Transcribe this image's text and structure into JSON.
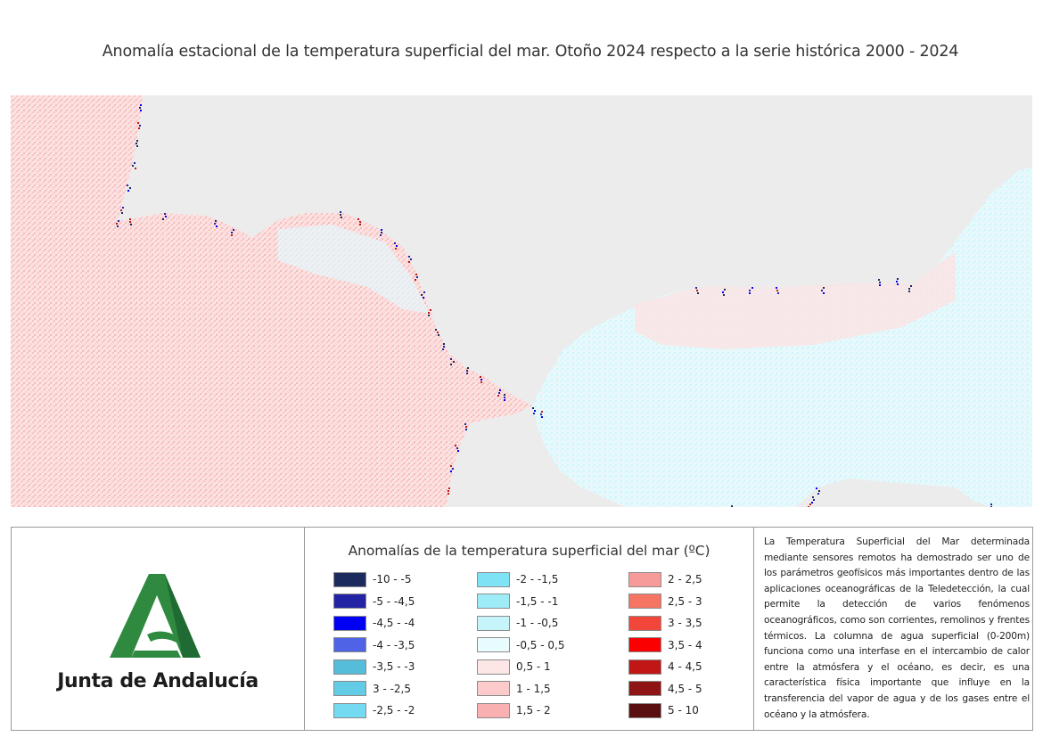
{
  "title": "Anomalía estacional de la temperatura superficial del mar. Otoño 2024 respecto a la serie histórica 2000 - 2024",
  "map": {
    "land_color": "#ececec",
    "dominant_west": "0,5 - 1",
    "dominant_east": "-0,5 - 0,5"
  },
  "logo": {
    "text": "Junta de Andalucía",
    "primary_color": "#2f8a3f",
    "dark_color": "#1f6b33"
  },
  "legend": {
    "title": "Anomalías de la temperatura superficial del mar (ºC)",
    "columns": [
      [
        {
          "label": "-10 - -5",
          "color": "#1b2b5e"
        },
        {
          "label": "-5 - -4,5",
          "color": "#2323a6"
        },
        {
          "label": "-4,5 - -4",
          "color": "#0000f5"
        },
        {
          "label": "-4 - -3,5",
          "color": "#4f63e6"
        },
        {
          "label": "-3,5 - -3",
          "color": "#55bcd9"
        },
        {
          "label": "3 - -2,5",
          "color": "#62cbe6"
        },
        {
          "label": "-2,5 - -2",
          "color": "#73daf2"
        }
      ],
      [
        {
          "label": "-2 - -1,5",
          "color": "#7fe2f5"
        },
        {
          "label": "-1,5 - -1",
          "color": "#9eecf8"
        },
        {
          "label": "-1 - -0,5",
          "color": "#c5f5fb"
        },
        {
          "label": "-0,5 - 0,5",
          "color": "#e8fbfd"
        },
        {
          "label": "0,5 - 1",
          "color": "#fde6e6"
        },
        {
          "label": "1 - 1,5",
          "color": "#fccaca"
        },
        {
          "label": "1,5 - 2",
          "color": "#f9b0b0"
        }
      ],
      [
        {
          "label": "2 - 2,5",
          "color": "#f79a9a"
        },
        {
          "label": "2,5 - 3",
          "color": "#f57462"
        },
        {
          "label": "3 - 3,5",
          "color": "#f2463a"
        },
        {
          "label": "3,5 - 4",
          "color": "#fb0000"
        },
        {
          "label": "4 - 4,5",
          "color": "#c01616"
        },
        {
          "label": "4,5 - 5",
          "color": "#8f1414"
        },
        {
          "label": "5 - 10",
          "color": "#5a1010"
        }
      ]
    ]
  },
  "description": "La Temperatura Superficial del Mar determinada mediante sensores remotos ha demostrado ser uno de los parámetros geofísicos más importantes dentro de las aplicaciones oceanográficas de la Teledetección, la cual permite la detección de varios fenómenos oceanográficos, como son corrientes, remolinos y frentes térmicos. La columna de agua superficial (0-200m) funciona como una interfase en el intercambio de calor entre la atmósfera y el océano, es decir, es una característica física importante que influye en la transferencia del vapor de agua y de los gases entre el océano y la atmósfera."
}
